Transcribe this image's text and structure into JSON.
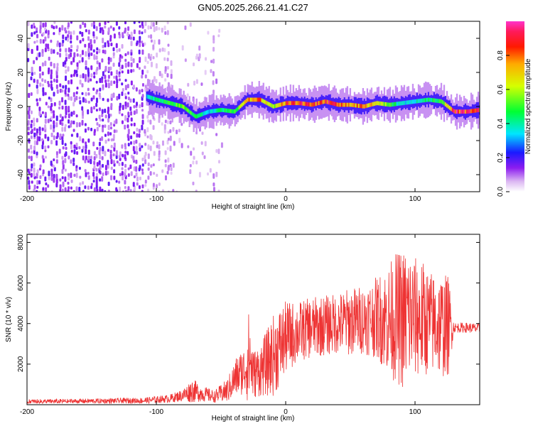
{
  "chart_data": [
    {
      "type": "heatmap",
      "title": "GN05.2025.266.21.41.C27",
      "xlabel": "Height of straight line (km)",
      "ylabel": "Frequency (Hz)",
      "xlim": [
        -200,
        150
      ],
      "ylim": [
        -50,
        50
      ],
      "xticks": [
        -200,
        -100,
        0,
        100
      ],
      "yticks": [
        -40,
        -20,
        0,
        20,
        40
      ],
      "colorbar": {
        "label": "Normalized spectral amplitude",
        "range": [
          0,
          1
        ],
        "ticks": [
          0.0,
          0.2,
          0.4,
          0.6,
          0.8
        ],
        "tick_labels": [
          "0.0",
          "0.2",
          "0.4",
          "0.6",
          "0.8"
        ]
      },
      "ridge": {
        "x": [
          -108,
          -100,
          -90,
          -80,
          -70,
          -60,
          -50,
          -40,
          -30,
          -20,
          -10,
          0,
          10,
          20,
          30,
          40,
          50,
          60,
          70,
          80,
          90,
          100,
          110,
          120,
          130,
          140,
          150
        ],
        "freq": [
          6,
          4,
          2,
          0,
          -6,
          -3,
          -2,
          -3,
          4,
          4,
          0,
          2,
          2,
          1,
          3,
          1,
          1,
          0,
          2,
          1,
          2,
          3,
          4,
          3,
          -3,
          -3,
          -2
        ],
        "amplitude": [
          0.35,
          0.45,
          0.5,
          0.55,
          0.45,
          0.35,
          0.45,
          0.5,
          0.75,
          0.8,
          0.55,
          0.85,
          0.9,
          0.85,
          0.9,
          0.85,
          0.75,
          0.8,
          0.7,
          0.5,
          0.35,
          0.4,
          0.45,
          0.55,
          0.95,
          0.9,
          0.85
        ]
      },
      "noise_region": {
        "x_range": [
          -200,
          -50
        ]
      }
    },
    {
      "type": "line",
      "title": "",
      "xlabel": "Height of straight line (km)",
      "ylabel": "SNR (10 * v/v)",
      "xlim": [
        -200,
        150
      ],
      "ylim": [
        0,
        8400
      ],
      "xticks": [
        -200,
        -100,
        0,
        100
      ],
      "yticks": [
        2000,
        4000,
        6000,
        8000
      ],
      "series": [
        {
          "name": "SNR",
          "color": "#ee3333",
          "x": [
            -200,
            -150,
            -110,
            -90,
            -80,
            -72,
            -65,
            -55,
            -45,
            -38,
            -32,
            -28,
            -25,
            -20,
            -15,
            -10,
            -5,
            0,
            10,
            20,
            30,
            40,
            50,
            60,
            70,
            80,
            85,
            90,
            95,
            100,
            105,
            110,
            115,
            120,
            126,
            130,
            140,
            150
          ],
          "y": [
            150,
            180,
            200,
            300,
            450,
            700,
            550,
            400,
            700,
            1400,
            1700,
            2400,
            1500,
            1700,
            2000,
            2400,
            2800,
            3300,
            3600,
            3800,
            3900,
            4000,
            4100,
            4200,
            4300,
            4200,
            4300,
            4200,
            4400,
            4300,
            4200,
            4100,
            4000,
            3900,
            3900,
            3800,
            3800,
            3750
          ],
          "spread": [
            120,
            120,
            150,
            200,
            300,
            600,
            400,
            300,
            600,
            1000,
            1200,
            2500,
            1200,
            1300,
            1600,
            2000,
            2000,
            1800,
            1500,
            1500,
            1500,
            1500,
            1700,
            1700,
            2000,
            2800,
            3200,
            3500,
            3500,
            3000,
            3000,
            2600,
            2500,
            2600,
            2500,
            250,
            250,
            250
          ]
        }
      ]
    }
  ]
}
